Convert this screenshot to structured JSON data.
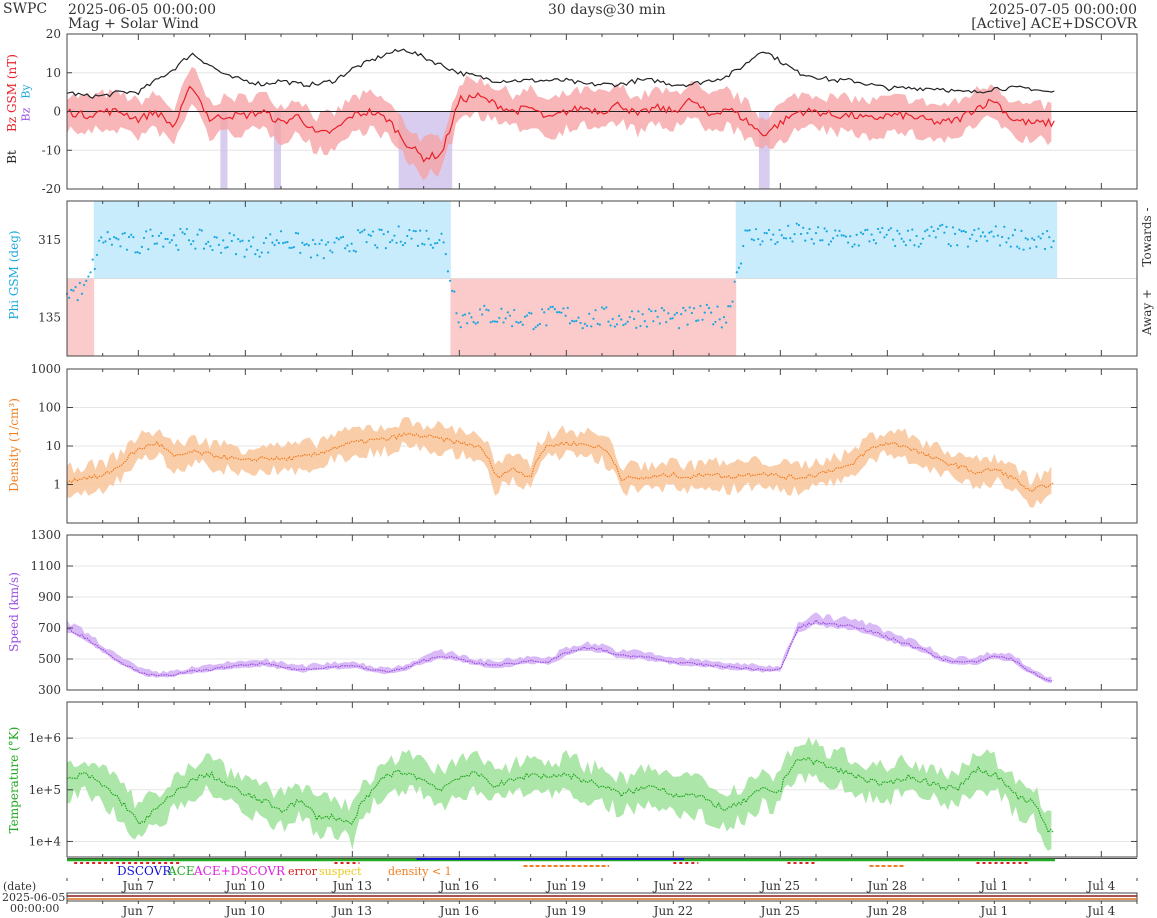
{
  "header": {
    "agency": "SWPC",
    "start_date": "2025-06-05 00:00:00",
    "subtitle": "Mag + Solar Wind",
    "span": "30 days@30 min",
    "end_date": "2025-07-05 00:00:00",
    "source": "[Active] ACE+DSCOVR"
  },
  "colors": {
    "bt": "#222222",
    "bz": "#e8202a",
    "bz_fill": "#f6a4a6",
    "bz_south": "#c8b8e8",
    "phi": "#1aa7e0",
    "phi_toward": "#c8ecfb",
    "phi_away": "#fbcaca",
    "density": "#f07d20",
    "density_fill": "#f9c49a",
    "speed": "#9a4ce0",
    "speed_fill": "#d2aef6",
    "temp": "#22a822",
    "temp_fill": "#9fe29a",
    "dscovr": "#1010d8",
    "ace": "#22aa22",
    "acedscovr": "#e020e0",
    "error": "#d82020",
    "suspect": "#e8c820",
    "lowdens": "#f07d20"
  },
  "axis": {
    "x_ticks": [
      "Jun 7",
      "Jun 10",
      "Jun 13",
      "Jun 16",
      "Jun 19",
      "Jun 22",
      "Jun 25",
      "Jun 28",
      "Jul 1",
      "Jul 4"
    ],
    "date_label": "(date)",
    "date_start_line1": "2025-06-05",
    "date_start_line2": "00:00:00"
  },
  "legend": {
    "dscovr": "DSCOVR",
    "ace": "ACE",
    "acedscovr": "ACE+DSCOVR",
    "error": "error",
    "suspect": "suspect",
    "lowdens": "density < 1"
  },
  "chart_data": [
    {
      "type": "line",
      "title": "",
      "ylabel_bt": "Bt",
      "ylabel_bz": "Bz GSM (nT)",
      "legend_bz": "Bz",
      "legend_by": "By",
      "ylim": [
        -20,
        20
      ],
      "yticks": [
        "20",
        "10",
        "0",
        "-10",
        "-20"
      ],
      "x_days": [
        0,
        0.5,
        1,
        1.5,
        2,
        2.5,
        3,
        3.5,
        4,
        4.5,
        5,
        5.5,
        6,
        6.5,
        7,
        7.5,
        8,
        8.5,
        9,
        9.5,
        10,
        10.5,
        11,
        11.5,
        12,
        12.5,
        13,
        13.5,
        14,
        14.5,
        15,
        15.5,
        16,
        16.5,
        17,
        17.5,
        18,
        18.5,
        19,
        19.5,
        20,
        20.5,
        21,
        21.5,
        22,
        22.5,
        23,
        23.5,
        24,
        24.5,
        25,
        25.5,
        26,
        26.5,
        27,
        27.5
      ],
      "series": [
        {
          "name": "Bt",
          "values": [
            5,
            4,
            4,
            5,
            5,
            8,
            11,
            15,
            12,
            9,
            8,
            7,
            8,
            7,
            7,
            8,
            11,
            13,
            15,
            16,
            14,
            12,
            10,
            9,
            8,
            8,
            8,
            8,
            8,
            7,
            7,
            7,
            8,
            8,
            7,
            7,
            8,
            9,
            12,
            16,
            13,
            10,
            9,
            8,
            8,
            7,
            6,
            6,
            6,
            6,
            5,
            5,
            6,
            6,
            6,
            5
          ]
        },
        {
          "name": "Bz",
          "values": [
            0,
            -1,
            0,
            0,
            -2,
            0,
            -4,
            7,
            -2,
            -1,
            -1,
            0,
            -3,
            -1,
            -6,
            -5,
            -1,
            0,
            -2,
            -8,
            -12,
            -11,
            3,
            4,
            2,
            0,
            1,
            -2,
            0,
            1,
            0,
            2,
            -1,
            1,
            0,
            3,
            -1,
            1,
            -2,
            -6,
            -3,
            0,
            0,
            -1,
            -1,
            -2,
            -1,
            -1,
            -2,
            -3,
            -2,
            1,
            3,
            -2,
            -3,
            -3
          ]
        }
      ]
    },
    {
      "type": "scatter",
      "title": "",
      "ylabel": "Phi GSM (deg)",
      "side_top": "Towards -",
      "side_bottom": "Away +",
      "ylim": [
        45,
        405
      ],
      "yticks": [
        "315",
        "135"
      ],
      "x_days": [
        0,
        0.5,
        1,
        1.5,
        2,
        2.5,
        3,
        3.5,
        4,
        4.5,
        5,
        5.5,
        6,
        6.5,
        7,
        7.5,
        8,
        8.5,
        9,
        9.5,
        10,
        10.5,
        11,
        11.5,
        12,
        12.5,
        13,
        13.5,
        14,
        14.5,
        15,
        15.5,
        16,
        16.5,
        17,
        17.5,
        18,
        18.5,
        19,
        19.5,
        20,
        20.5,
        21,
        21.5,
        22,
        22.5,
        23,
        23.5,
        24,
        24.5,
        25,
        25.5,
        26,
        26.5,
        27,
        27.5
      ],
      "series": [
        {
          "name": "Phi",
          "values": [
            195,
            195,
            320,
            310,
            300,
            330,
            315,
            320,
            305,
            310,
            300,
            300,
            320,
            305,
            290,
            295,
            310,
            320,
            310,
            330,
            320,
            320,
            135,
            140,
            140,
            135,
            130,
            135,
            140,
            130,
            135,
            130,
            135,
            140,
            130,
            135,
            140,
            135,
            320,
            325,
            320,
            330,
            320,
            320,
            315,
            325,
            320,
            320,
            320,
            330,
            315,
            320,
            325,
            320,
            315,
            310
          ]
        }
      ]
    },
    {
      "type": "line",
      "title": "",
      "ylabel": "Density (1/cm³)",
      "ylim": [
        0.1,
        1000
      ],
      "log": true,
      "yticks": [
        "1000",
        "100",
        "10",
        "1"
      ],
      "x_days": [
        0,
        0.5,
        1,
        1.5,
        2,
        2.5,
        3,
        3.5,
        4,
        4.5,
        5,
        5.5,
        6,
        6.5,
        7,
        7.5,
        8,
        8.5,
        9,
        9.5,
        10,
        10.5,
        11,
        11.5,
        12,
        12.5,
        13,
        13.5,
        14,
        14.5,
        15,
        15.5,
        16,
        16.5,
        17,
        17.5,
        18,
        18.5,
        19,
        19.5,
        20,
        20.5,
        21,
        21.5,
        22,
        22.5,
        23,
        23.5,
        24,
        24.5,
        25,
        25.5,
        26,
        26.5,
        27,
        27.5
      ],
      "series": [
        {
          "name": "Density",
          "values": [
            1.2,
            1.5,
            1.6,
            3.0,
            8.0,
            12,
            5,
            7,
            6,
            5,
            4,
            5,
            4.5,
            5,
            6,
            9,
            12,
            14,
            15,
            20,
            18,
            15,
            12,
            10,
            1.5,
            2.5,
            1.5,
            10,
            12,
            11,
            9,
            1.5,
            1.4,
            1.6,
            1.8,
            1.5,
            2.0,
            1.5,
            1.8,
            2.0,
            1.6,
            1.5,
            1.8,
            2.5,
            3.0,
            8,
            12,
            10,
            6,
            4,
            3,
            2,
            2.5,
            1.5,
            0.6,
            1.0
          ]
        }
      ]
    },
    {
      "type": "line",
      "title": "",
      "ylabel": "Speed (km/s)",
      "ylim": [
        300,
        1300
      ],
      "yticks": [
        "1300",
        "1100",
        "900",
        "700",
        "500",
        "300"
      ],
      "x_days": [
        0,
        0.5,
        1,
        1.5,
        2,
        2.5,
        3,
        3.5,
        4,
        4.5,
        5,
        5.5,
        6,
        6.5,
        7,
        7.5,
        8,
        8.5,
        9,
        9.5,
        10,
        10.5,
        11,
        11.5,
        12,
        12.5,
        13,
        13.5,
        14,
        14.5,
        15,
        15.5,
        16,
        16.5,
        17,
        17.5,
        18,
        18.5,
        19,
        19.5,
        20,
        20.5,
        21,
        21.5,
        22,
        22.5,
        23,
        23.5,
        24,
        24.5,
        25,
        25.5,
        26,
        26.5,
        27,
        27.5
      ],
      "series": [
        {
          "name": "Speed",
          "values": [
            700,
            640,
            560,
            480,
            420,
            390,
            400,
            420,
            430,
            450,
            460,
            470,
            450,
            430,
            440,
            450,
            460,
            430,
            420,
            440,
            490,
            520,
            500,
            470,
            460,
            470,
            490,
            480,
            540,
            570,
            560,
            520,
            520,
            500,
            480,
            470,
            460,
            450,
            440,
            430,
            430,
            700,
            740,
            720,
            720,
            680,
            640,
            600,
            560,
            500,
            480,
            480,
            520,
            500,
            420,
            360
          ]
        }
      ]
    },
    {
      "type": "line",
      "title": "",
      "ylabel": "Temperature (°K)",
      "ylim": [
        5000,
        5000000
      ],
      "log": true,
      "yticks": [
        "1e+6",
        "1e+5",
        "1e+4"
      ],
      "x_days": [
        0,
        0.5,
        1,
        1.5,
        2,
        2.5,
        3,
        3.5,
        4,
        4.5,
        5,
        5.5,
        6,
        6.5,
        7,
        7.5,
        8,
        8.5,
        9,
        9.5,
        10,
        10.5,
        11,
        11.5,
        12,
        12.5,
        13,
        13.5,
        14,
        14.5,
        15,
        15.5,
        16,
        16.5,
        17,
        17.5,
        18,
        18.5,
        19,
        19.5,
        20,
        20.5,
        21,
        21.5,
        22,
        22.5,
        23,
        23.5,
        24,
        24.5,
        25,
        25.5,
        26,
        26.5,
        27,
        27.5
      ],
      "series": [
        {
          "name": "Temperature",
          "values": [
            150000,
            200000,
            120000,
            60000,
            20000,
            40000,
            80000,
            150000,
            200000,
            120000,
            80000,
            60000,
            40000,
            60000,
            30000,
            30000,
            20000,
            80000,
            200000,
            220000,
            150000,
            100000,
            180000,
            200000,
            120000,
            150000,
            200000,
            180000,
            200000,
            150000,
            120000,
            80000,
            100000,
            120000,
            80000,
            80000,
            60000,
            40000,
            60000,
            100000,
            90000,
            400000,
            350000,
            250000,
            200000,
            150000,
            120000,
            180000,
            150000,
            120000,
            100000,
            250000,
            200000,
            80000,
            60000,
            15000
          ]
        }
      ]
    }
  ]
}
